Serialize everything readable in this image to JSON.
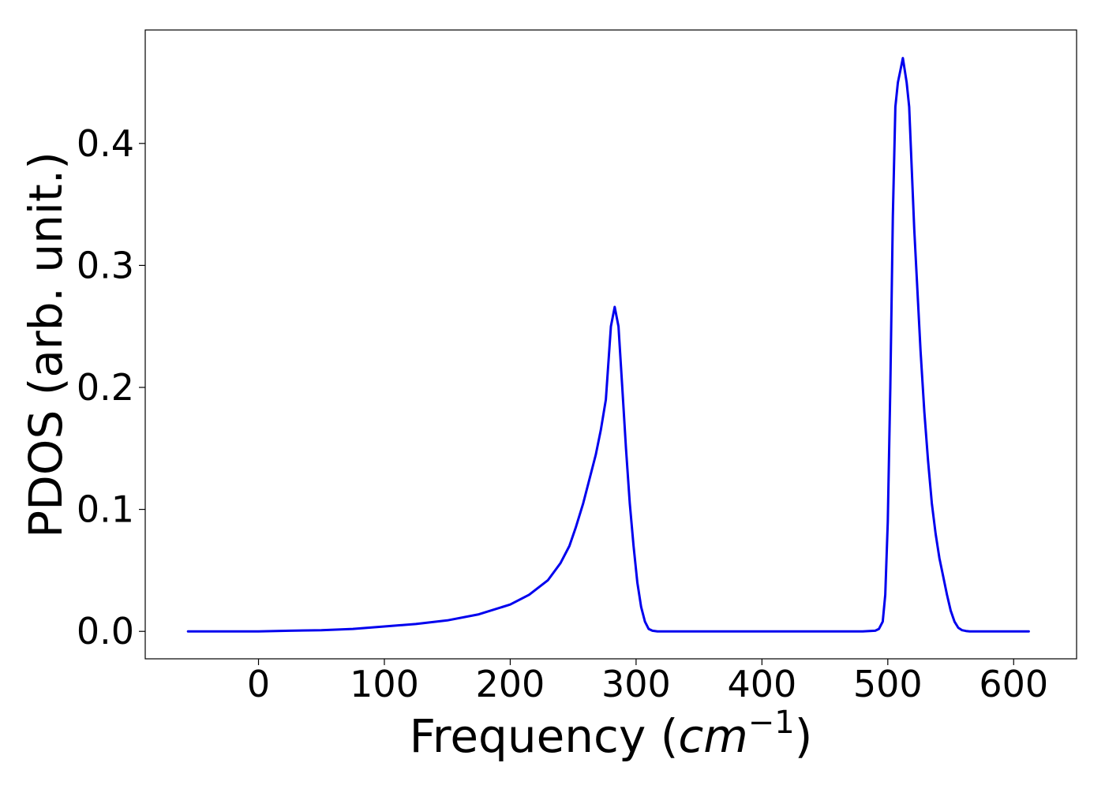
{
  "chart_data": {
    "type": "line",
    "title": "",
    "xlabel": "Frequency (",
    "xlabel_math": "cm",
    "xlabel_sup": "−1",
    "xlabel_close": ")",
    "ylabel": "PDOS (arb. unit.)",
    "xlim": [
      -90,
      650
    ],
    "ylim": [
      -0.0225,
      0.493
    ],
    "xticks": [
      0,
      100,
      200,
      300,
      400,
      500,
      600
    ],
    "xtick_labels": [
      "0",
      "100",
      "200",
      "300",
      "400",
      "500",
      "600"
    ],
    "yticks": [
      0.0,
      0.1,
      0.2,
      0.3,
      0.4
    ],
    "ytick_labels": [
      "0.0",
      "0.1",
      "0.2",
      "0.3",
      "0.4"
    ],
    "grid": false,
    "legend": "none",
    "series": [
      {
        "color": "#0000ee",
        "x": [
          -56,
          0,
          25,
          50,
          75,
          100,
          125,
          150,
          175,
          200,
          215,
          230,
          240,
          247,
          252,
          258,
          263,
          268,
          272,
          276,
          280,
          283,
          286,
          289,
          292,
          295,
          298,
          301,
          304,
          307,
          310,
          313,
          317,
          325,
          350,
          400,
          450,
          480,
          490,
          493,
          496,
          498,
          500,
          502,
          504,
          506,
          508,
          510,
          512,
          515,
          517,
          519,
          521,
          523,
          526,
          529,
          532,
          535,
          538,
          541,
          544,
          547,
          550,
          553,
          556,
          559,
          562,
          565,
          568,
          575,
          600,
          612
        ],
        "y": [
          0.0,
          0.0,
          0.0005,
          0.001,
          0.002,
          0.004,
          0.006,
          0.009,
          0.014,
          0.022,
          0.03,
          0.042,
          0.056,
          0.07,
          0.085,
          0.105,
          0.125,
          0.145,
          0.165,
          0.19,
          0.25,
          0.266,
          0.25,
          0.2,
          0.15,
          0.105,
          0.07,
          0.04,
          0.02,
          0.008,
          0.002,
          0.0005,
          0.0,
          0.0,
          0.0,
          0.0,
          0.0,
          0.0,
          0.0005,
          0.002,
          0.008,
          0.03,
          0.09,
          0.2,
          0.34,
          0.43,
          0.45,
          0.46,
          0.47,
          0.45,
          0.43,
          0.38,
          0.33,
          0.29,
          0.23,
          0.18,
          0.14,
          0.105,
          0.08,
          0.06,
          0.045,
          0.03,
          0.017,
          0.008,
          0.003,
          0.001,
          0.0003,
          0.0,
          0.0,
          0.0,
          0.0,
          0.0
        ]
      }
    ]
  }
}
